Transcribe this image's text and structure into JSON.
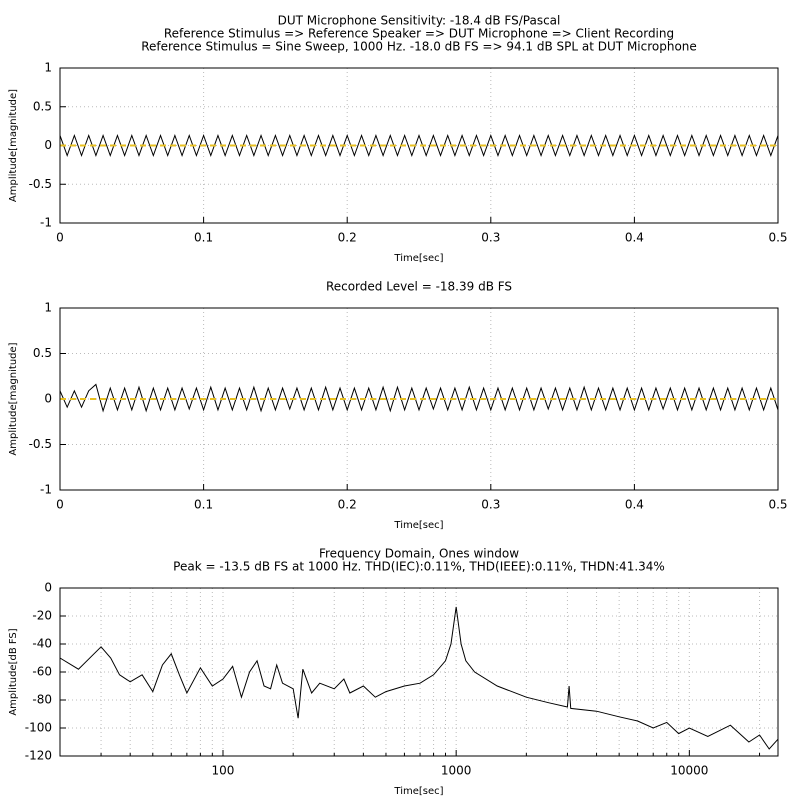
{
  "chart_data": [
    {
      "type": "line",
      "title": [
        "DUT Microphone Sensitivity: -18.4 dB FS/Pascal",
        "Reference Stimulus => Reference Speaker => DUT Microphone => Client Recording",
        "Reference Stimulus = Sine Sweep, 1000 Hz. -18.0 dB FS => 94.1 dB SPL at DUT Microphone"
      ],
      "xlabel": "Time[sec]",
      "ylabel": "Amplitude[magnitude]",
      "xlim": [
        0,
        0.5
      ],
      "ylim": [
        -1,
        1
      ],
      "xticks": [
        0,
        0.1,
        0.2,
        0.3,
        0.4,
        0.5
      ],
      "yticks": [
        -1,
        -0.5,
        0,
        0.5,
        1
      ],
      "grid": true,
      "xscale": "linear",
      "series": [
        {
          "color": "#000000",
          "dash": false,
          "x": [
            0,
            0.005,
            0.01,
            0.015,
            0.02,
            0.025,
            0.03,
            0.035,
            0.04,
            0.045,
            0.05,
            0.055,
            0.06,
            0.065,
            0.07,
            0.075,
            0.08,
            0.085,
            0.09,
            0.095,
            0.1,
            0.105,
            0.11,
            0.115,
            0.12,
            0.125,
            0.13,
            0.135,
            0.14,
            0.145,
            0.15,
            0.155,
            0.16,
            0.165,
            0.17,
            0.175,
            0.18,
            0.185,
            0.19,
            0.195,
            0.2,
            0.205,
            0.21,
            0.215,
            0.22,
            0.225,
            0.23,
            0.235,
            0.24,
            0.245,
            0.25,
            0.255,
            0.26,
            0.265,
            0.27,
            0.275,
            0.28,
            0.285,
            0.29,
            0.295,
            0.3,
            0.305,
            0.31,
            0.315,
            0.32,
            0.325,
            0.33,
            0.335,
            0.34,
            0.345,
            0.35,
            0.355,
            0.36,
            0.365,
            0.37,
            0.375,
            0.38,
            0.385,
            0.39,
            0.395,
            0.4,
            0.405,
            0.41,
            0.415,
            0.42,
            0.425,
            0.43,
            0.435,
            0.44,
            0.445,
            0.45,
            0.455,
            0.46,
            0.465,
            0.47,
            0.475,
            0.48,
            0.485,
            0.49,
            0.495,
            0.5
          ],
          "values": [
            0.13,
            -0.13,
            0.13,
            -0.13,
            0.13,
            -0.13,
            0.13,
            -0.13,
            0.13,
            -0.13,
            0.13,
            -0.13,
            0.13,
            -0.13,
            0.13,
            -0.13,
            0.13,
            -0.13,
            0.13,
            -0.13,
            0.13,
            -0.13,
            0.13,
            -0.13,
            0.13,
            -0.13,
            0.13,
            -0.13,
            0.13,
            -0.13,
            0.13,
            -0.13,
            0.13,
            -0.13,
            0.13,
            -0.13,
            0.13,
            -0.13,
            0.13,
            -0.13,
            0.13,
            -0.13,
            0.13,
            -0.13,
            0.13,
            -0.13,
            0.13,
            -0.13,
            0.13,
            -0.13,
            0.13,
            -0.13,
            0.13,
            -0.13,
            0.13,
            -0.13,
            0.13,
            -0.13,
            0.13,
            -0.13,
            0.13,
            -0.13,
            0.13,
            -0.13,
            0.13,
            -0.13,
            0.13,
            -0.13,
            0.13,
            -0.13,
            0.13,
            -0.13,
            0.13,
            -0.13,
            0.13,
            -0.13,
            0.13,
            -0.13,
            0.13,
            -0.13,
            0.13,
            -0.13,
            0.13,
            -0.13,
            0.13,
            -0.13,
            0.13,
            -0.13,
            0.13,
            -0.13,
            0.13,
            -0.13,
            0.13,
            -0.13,
            0.13,
            -0.13,
            0.13,
            -0.13,
            0.13,
            -0.13,
            0.13
          ]
        },
        {
          "color": "#e8c020",
          "dash": true,
          "x": [
            0,
            0.5
          ],
          "values": [
            0,
            0
          ]
        }
      ]
    },
    {
      "type": "line",
      "title": [
        "Recorded Level = -18.39 dB FS"
      ],
      "xlabel": "Time[sec]",
      "ylabel": "Amplitude[magnitude]",
      "xlim": [
        0,
        0.5
      ],
      "ylim": [
        -1,
        1
      ],
      "xticks": [
        0,
        0.1,
        0.2,
        0.3,
        0.4,
        0.5
      ],
      "yticks": [
        -1,
        -0.5,
        0,
        0.5,
        1
      ],
      "grid": true,
      "xscale": "linear",
      "series": [
        {
          "color": "#000000",
          "dash": false,
          "x": [
            0,
            0.005,
            0.01,
            0.015,
            0.02,
            0.025,
            0.03,
            0.035,
            0.04,
            0.045,
            0.05,
            0.055,
            0.06,
            0.065,
            0.07,
            0.075,
            0.08,
            0.085,
            0.09,
            0.095,
            0.1,
            0.105,
            0.11,
            0.115,
            0.12,
            0.125,
            0.13,
            0.135,
            0.14,
            0.145,
            0.15,
            0.155,
            0.16,
            0.165,
            0.17,
            0.175,
            0.18,
            0.185,
            0.19,
            0.195,
            0.2,
            0.205,
            0.21,
            0.215,
            0.22,
            0.225,
            0.23,
            0.235,
            0.24,
            0.245,
            0.25,
            0.255,
            0.26,
            0.265,
            0.27,
            0.275,
            0.28,
            0.285,
            0.29,
            0.295,
            0.3,
            0.305,
            0.31,
            0.315,
            0.32,
            0.325,
            0.33,
            0.335,
            0.34,
            0.345,
            0.35,
            0.355,
            0.36,
            0.365,
            0.37,
            0.375,
            0.38,
            0.385,
            0.39,
            0.395,
            0.4,
            0.405,
            0.41,
            0.415,
            0.42,
            0.425,
            0.43,
            0.435,
            0.44,
            0.445,
            0.45,
            0.455,
            0.46,
            0.465,
            0.47,
            0.475,
            0.48,
            0.485,
            0.49,
            0.495,
            0.5
          ],
          "values": [
            0.09,
            -0.09,
            0.09,
            -0.09,
            0.09,
            0.16,
            -0.13,
            0.12,
            -0.12,
            0.12,
            -0.12,
            0.13,
            -0.13,
            0.12,
            -0.12,
            0.12,
            -0.12,
            0.12,
            -0.11,
            0.12,
            -0.12,
            0.13,
            -0.12,
            0.12,
            -0.12,
            0.12,
            -0.12,
            0.13,
            -0.13,
            0.12,
            -0.12,
            0.12,
            -0.11,
            0.12,
            -0.12,
            0.12,
            -0.12,
            0.13,
            -0.12,
            0.12,
            -0.12,
            0.12,
            -0.12,
            0.12,
            -0.12,
            0.13,
            -0.13,
            0.13,
            -0.12,
            0.12,
            -0.12,
            0.12,
            -0.11,
            0.12,
            -0.12,
            0.12,
            -0.12,
            0.13,
            -0.12,
            0.12,
            -0.12,
            0.12,
            -0.12,
            0.12,
            -0.12,
            0.12,
            -0.12,
            0.12,
            -0.11,
            0.12,
            -0.12,
            0.12,
            -0.12,
            0.13,
            -0.12,
            0.12,
            -0.12,
            0.12,
            -0.12,
            0.12,
            -0.12,
            0.12,
            -0.12,
            0.12,
            -0.11,
            0.12,
            -0.12,
            0.12,
            -0.12,
            0.12,
            -0.12,
            0.12,
            -0.12,
            0.12,
            -0.12,
            0.12,
            -0.12,
            0.12,
            -0.12,
            0.12,
            -0.12
          ]
        },
        {
          "color": "#e8c020",
          "dash": true,
          "x": [
            0,
            0.5
          ],
          "values": [
            0,
            0
          ]
        }
      ]
    },
    {
      "type": "line",
      "title": [
        "Frequency Domain, Ones window",
        "Peak = -13.5 dB FS at 1000 Hz. THD(IEC):0.11%, THD(IEEE):0.11%, THDN:41.34%"
      ],
      "xlabel": "Time[sec]",
      "ylabel": "Amplitude[dB FS]",
      "xlim": [
        20,
        24000
      ],
      "ylim": [
        -120,
        0
      ],
      "xticks": [
        100,
        1000,
        10000
      ],
      "xminorticks": [
        20,
        30,
        40,
        50,
        60,
        70,
        80,
        90,
        200,
        300,
        400,
        500,
        600,
        700,
        800,
        900,
        2000,
        3000,
        4000,
        5000,
        6000,
        7000,
        8000,
        9000,
        20000
      ],
      "yticks": [
        -120,
        -100,
        -80,
        -60,
        -40,
        -20,
        0
      ],
      "grid": true,
      "xscale": "log",
      "series": [
        {
          "color": "#000000",
          "dash": false,
          "x": [
            20,
            24,
            30,
            33,
            36,
            40,
            45,
            50,
            55,
            60,
            65,
            70,
            80,
            90,
            100,
            110,
            120,
            130,
            140,
            150,
            160,
            170,
            180,
            200,
            210,
            220,
            240,
            260,
            300,
            330,
            350,
            400,
            450,
            500,
            600,
            700,
            800,
            900,
            950,
            1000,
            1050,
            1100,
            1200,
            1500,
            2000,
            2500,
            3000,
            3050,
            3100,
            4000,
            5000,
            6000,
            7000,
            8000,
            9000,
            10000,
            12000,
            15000,
            18000,
            20000,
            22000,
            24000
          ],
          "values": [
            -50,
            -58,
            -42,
            -50,
            -62,
            -67,
            -62,
            -74,
            -55,
            -47,
            -62,
            -75,
            -57,
            -70,
            -65,
            -56,
            -78,
            -60,
            -52,
            -70,
            -72,
            -55,
            -68,
            -72,
            -93,
            -58,
            -75,
            -68,
            -72,
            -65,
            -75,
            -70,
            -78,
            -74,
            -70,
            -68,
            -62,
            -52,
            -40,
            -13.5,
            -40,
            -52,
            -60,
            -70,
            -78,
            -82,
            -85,
            -70,
            -86,
            -88,
            -92,
            -95,
            -100,
            -96,
            -104,
            -100,
            -106,
            -98,
            -110,
            -105,
            -115,
            -108
          ]
        }
      ]
    }
  ]
}
